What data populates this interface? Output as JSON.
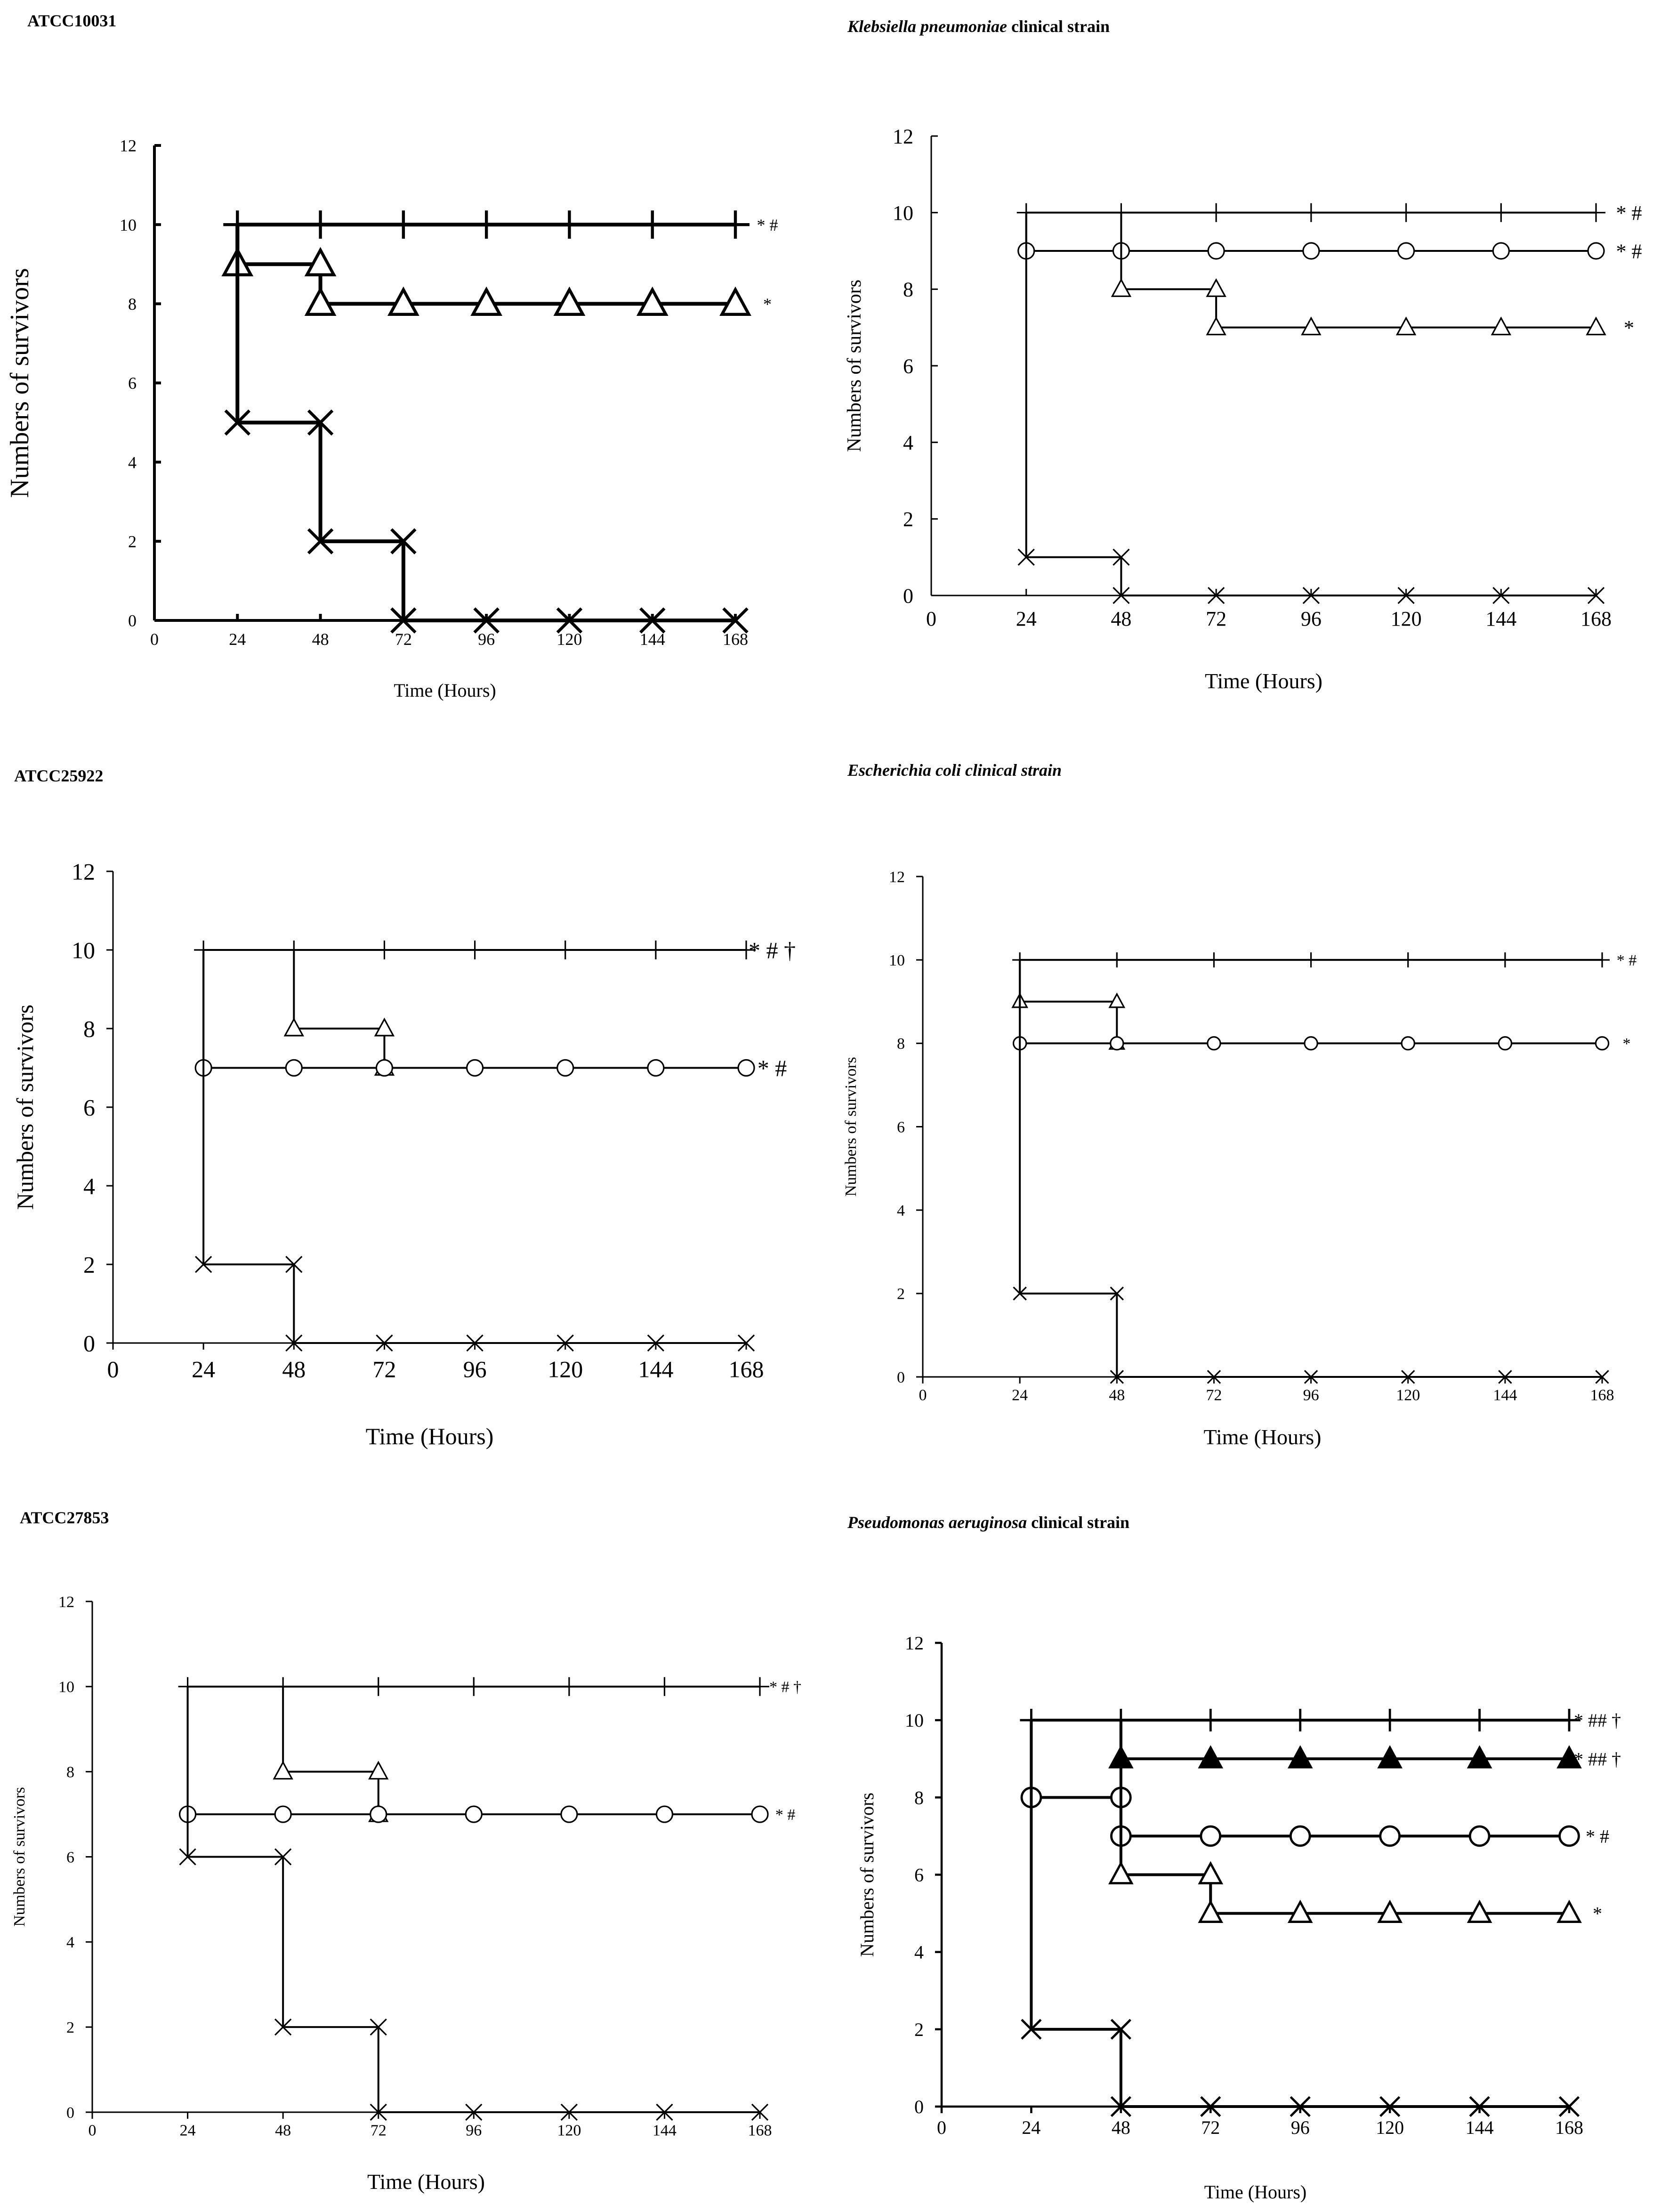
{
  "figure": {
    "panels": [
      {
        "title": "ATCC10031",
        "title_italic": "",
        "title_rest": ""
      },
      {
        "title": "",
        "title_italic": "Klebsiella pneumoniae",
        "title_rest": " clinical strain"
      },
      {
        "title": "ATCC25922",
        "title_italic": "",
        "title_rest": ""
      },
      {
        "title": "",
        "title_italic": "Escherichia coli clinical strain",
        "title_rest": ""
      },
      {
        "title": "ATCC27853",
        "title_italic": "",
        "title_rest": ""
      },
      {
        "title": "",
        "title_italic": "Pseudomonas aeruginosa",
        "title_rest": " clinical strain"
      }
    ]
  },
  "chart_data": [
    {
      "type": "line",
      "title": "ATCC10031",
      "xlabel": "Time (Hours)",
      "ylabel": "Numbers of survivors",
      "x": [
        0,
        24,
        48,
        72,
        96,
        120,
        144,
        168
      ],
      "x_ticks": [
        "0",
        "24",
        "48",
        "72",
        "96",
        "120",
        "144",
        "168"
      ],
      "y_ticks": [
        "0",
        "2",
        "4",
        "6",
        "8",
        "10",
        "12"
      ],
      "ylim": [
        0,
        12
      ],
      "xlim": [
        0,
        168
      ],
      "grid": false,
      "series": [
        {
          "name": "plus",
          "marker": "plus",
          "x": [
            24,
            48,
            72,
            96,
            120,
            144,
            168
          ],
          "values": [
            10,
            10,
            10,
            10,
            10,
            10,
            10
          ],
          "step_from": 10,
          "annotation": "* #"
        },
        {
          "name": "triangle",
          "marker": "triangle",
          "x": [
            24,
            48,
            48,
            72,
            96,
            120,
            144,
            168
          ],
          "values": [
            9,
            9,
            8,
            8,
            8,
            8,
            8,
            8
          ],
          "step_from": 10,
          "annotation": "*"
        },
        {
          "name": "cross",
          "marker": "x",
          "x": [
            24,
            48,
            48,
            72,
            72,
            96,
            120,
            144,
            168
          ],
          "values": [
            5,
            5,
            2,
            2,
            0,
            0,
            0,
            0,
            0
          ],
          "step_from": 10,
          "annotation": ""
        }
      ]
    },
    {
      "type": "line",
      "title": "Klebsiella pneumoniae clinical strain",
      "xlabel": "Time (Hours)",
      "ylabel": "Numbers of survivors",
      "x": [
        0,
        24,
        48,
        72,
        96,
        120,
        144,
        168
      ],
      "x_ticks": [
        "0",
        "24",
        "48",
        "72",
        "96",
        "120",
        "144",
        "168"
      ],
      "y_ticks": [
        "0",
        "2",
        "4",
        "6",
        "8",
        "10",
        "12"
      ],
      "ylim": [
        0,
        12
      ],
      "xlim": [
        0,
        168
      ],
      "grid": false,
      "series": [
        {
          "name": "plus",
          "marker": "plus",
          "x": [
            24,
            48,
            72,
            96,
            120,
            144,
            168
          ],
          "values": [
            10,
            10,
            10,
            10,
            10,
            10,
            10
          ],
          "step_from": 10,
          "annotation": "* #"
        },
        {
          "name": "circle",
          "marker": "circle",
          "x": [
            24,
            48,
            72,
            96,
            120,
            144,
            168
          ],
          "values": [
            9,
            9,
            9,
            9,
            9,
            9,
            9
          ],
          "step_from": 10,
          "annotation": "* #"
        },
        {
          "name": "triangle",
          "marker": "triangle",
          "x": [
            48,
            72,
            72,
            96,
            120,
            144,
            168
          ],
          "values": [
            8,
            8,
            7,
            7,
            7,
            7,
            7
          ],
          "step_from": 10,
          "annotation": "*"
        },
        {
          "name": "cross",
          "marker": "x",
          "x": [
            24,
            48,
            48,
            72,
            96,
            120,
            144,
            168
          ],
          "values": [
            1,
            1,
            0,
            0,
            0,
            0,
            0,
            0
          ],
          "step_from": 10,
          "annotation": ""
        }
      ]
    },
    {
      "type": "line",
      "title": "ATCC25922",
      "xlabel": "Time (Hours)",
      "ylabel": "Numbers of survivors",
      "x": [
        0,
        24,
        48,
        72,
        96,
        120,
        144,
        168
      ],
      "x_ticks": [
        "0",
        "24",
        "48",
        "72",
        "96",
        "120",
        "144",
        "168"
      ],
      "y_ticks": [
        "0",
        "2",
        "4",
        "6",
        "8",
        "10",
        "12"
      ],
      "ylim": [
        0,
        12
      ],
      "xlim": [
        0,
        168
      ],
      "grid": false,
      "series": [
        {
          "name": "plus",
          "marker": "plus",
          "x": [
            24,
            48,
            72,
            96,
            120,
            144,
            168
          ],
          "values": [
            10,
            10,
            10,
            10,
            10,
            10,
            10
          ],
          "step_from": 10,
          "annotation": "* # †"
        },
        {
          "name": "triangle",
          "marker": "triangle",
          "x": [
            48,
            72,
            72
          ],
          "values": [
            8,
            8,
            7
          ],
          "step_from": 10,
          "annotation": ""
        },
        {
          "name": "circle",
          "marker": "circle",
          "x": [
            24,
            48,
            72,
            96,
            120,
            144,
            168
          ],
          "values": [
            7,
            7,
            7,
            7,
            7,
            7,
            7
          ],
          "step_from": 10,
          "annotation": "* #"
        },
        {
          "name": "cross",
          "marker": "x",
          "x": [
            24,
            48,
            48,
            72,
            96,
            120,
            144,
            168
          ],
          "values": [
            2,
            2,
            0,
            0,
            0,
            0,
            0,
            0
          ],
          "step_from": 10,
          "annotation": ""
        }
      ]
    },
    {
      "type": "line",
      "title": "Escherichia coli clinical strain",
      "xlabel": "Time (Hours)",
      "ylabel": "Numbers of survivors",
      "x": [
        0,
        24,
        48,
        72,
        96,
        120,
        144,
        168
      ],
      "x_ticks": [
        "0",
        "24",
        "48",
        "72",
        "96",
        "120",
        "144",
        "168"
      ],
      "y_ticks": [
        "0",
        "2",
        "4",
        "6",
        "8",
        "10",
        "12"
      ],
      "ylim": [
        0,
        12
      ],
      "xlim": [
        0,
        168
      ],
      "grid": false,
      "series": [
        {
          "name": "plus",
          "marker": "plus",
          "x": [
            24,
            48,
            72,
            96,
            120,
            144,
            168
          ],
          "values": [
            10,
            10,
            10,
            10,
            10,
            10,
            10
          ],
          "step_from": 10,
          "annotation": "* #"
        },
        {
          "name": "triangle",
          "marker": "triangle",
          "x": [
            24,
            48,
            48
          ],
          "values": [
            9,
            9,
            8
          ],
          "step_from": 10,
          "annotation": ""
        },
        {
          "name": "circle",
          "marker": "circle",
          "x": [
            24,
            48,
            72,
            96,
            120,
            144,
            168
          ],
          "values": [
            8,
            8,
            8,
            8,
            8,
            8,
            8
          ],
          "step_from": 10,
          "annotation": "*"
        },
        {
          "name": "cross",
          "marker": "x",
          "x": [
            24,
            48,
            48,
            72,
            96,
            120,
            144,
            168
          ],
          "values": [
            2,
            2,
            0,
            0,
            0,
            0,
            0,
            0
          ],
          "step_from": 10,
          "annotation": ""
        }
      ]
    },
    {
      "type": "line",
      "title": "ATCC27853",
      "xlabel": "Time (Hours)",
      "ylabel": "Numbers of survivors",
      "x": [
        0,
        24,
        48,
        72,
        96,
        120,
        144,
        168
      ],
      "x_ticks": [
        "0",
        "24",
        "48",
        "72",
        "96",
        "120",
        "144",
        "168"
      ],
      "y_ticks": [
        "0",
        "2",
        "4",
        "6",
        "8",
        "10",
        "12"
      ],
      "ylim": [
        0,
        12
      ],
      "xlim": [
        0,
        168
      ],
      "grid": false,
      "series": [
        {
          "name": "plus",
          "marker": "plus",
          "x": [
            24,
            48,
            72,
            96,
            120,
            144,
            168
          ],
          "values": [
            10,
            10,
            10,
            10,
            10,
            10,
            10
          ],
          "step_from": 10,
          "annotation": "* # †"
        },
        {
          "name": "triangle",
          "marker": "triangle",
          "x": [
            48,
            72,
            72
          ],
          "values": [
            8,
            8,
            7
          ],
          "step_from": 10,
          "annotation": ""
        },
        {
          "name": "circle",
          "marker": "circle",
          "x": [
            24,
            48,
            72,
            96,
            120,
            144,
            168
          ],
          "values": [
            7,
            7,
            7,
            7,
            7,
            7,
            7
          ],
          "step_from": 10,
          "annotation": "* #"
        },
        {
          "name": "cross",
          "marker": "x",
          "x": [
            24,
            48,
            48,
            72,
            72,
            96,
            120,
            144,
            168
          ],
          "values": [
            6,
            6,
            2,
            2,
            0,
            0,
            0,
            0,
            0
          ],
          "step_from": 10,
          "annotation": ""
        }
      ]
    },
    {
      "type": "line",
      "title": "Pseudomonas aeruginosa clinical strain",
      "xlabel": "Time (Hours)",
      "ylabel": "Numbers of survivors",
      "x": [
        0,
        24,
        48,
        72,
        96,
        120,
        144,
        168
      ],
      "x_ticks": [
        "0",
        "24",
        "48",
        "72",
        "96",
        "120",
        "144",
        "168"
      ],
      "y_ticks": [
        "0",
        "2",
        "4",
        "6",
        "8",
        "10",
        "12"
      ],
      "ylim": [
        0,
        12
      ],
      "xlim": [
        0,
        168
      ],
      "grid": false,
      "series": [
        {
          "name": "plus",
          "marker": "plus",
          "x": [
            24,
            48,
            72,
            96,
            120,
            144,
            168
          ],
          "values": [
            10,
            10,
            10,
            10,
            10,
            10,
            10
          ],
          "step_from": 10,
          "annotation": "* ## †"
        },
        {
          "name": "filled-triangle",
          "marker": "triangle-filled",
          "x": [
            48,
            72,
            96,
            120,
            144,
            168
          ],
          "values": [
            9,
            9,
            9,
            9,
            9,
            9
          ],
          "step_from": 10,
          "annotation": "* ## †"
        },
        {
          "name": "circle",
          "marker": "circle",
          "x": [
            24,
            48,
            48,
            72,
            96,
            120,
            144,
            168
          ],
          "values": [
            8,
            8,
            7,
            7,
            7,
            7,
            7,
            7
          ],
          "step_from": 10,
          "annotation": "* #"
        },
        {
          "name": "triangle",
          "marker": "triangle",
          "x": [
            48,
            72,
            72,
            96,
            120,
            144,
            168
          ],
          "values": [
            6,
            6,
            5,
            5,
            5,
            5,
            5
          ],
          "step_from": 10,
          "annotation": "*"
        },
        {
          "name": "cross",
          "marker": "x",
          "x": [
            24,
            48,
            48,
            72,
            96,
            120,
            144,
            168
          ],
          "values": [
            2,
            2,
            0,
            0,
            0,
            0,
            0,
            0
          ],
          "step_from": 10,
          "annotation": ""
        }
      ]
    }
  ]
}
